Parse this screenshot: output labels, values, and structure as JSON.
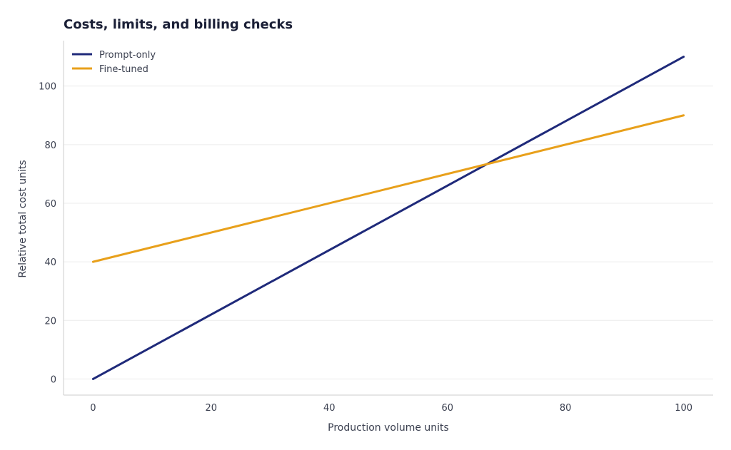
{
  "chart_data": {
    "type": "line",
    "title": "Costs, limits, and billing checks",
    "xlabel": "Production volume units",
    "ylabel": "Relative total cost units",
    "xlim": [
      -5,
      105
    ],
    "ylim": [
      -5.5,
      115.5
    ],
    "xticks": [
      0,
      20,
      40,
      60,
      80,
      100
    ],
    "yticks": [
      0,
      20,
      40,
      60,
      80,
      100
    ],
    "grid": "horizontal",
    "legend_position": "top-left",
    "series": [
      {
        "name": "Prompt-only",
        "color": "#1f2a7a",
        "x": [
          0,
          100
        ],
        "y": [
          0,
          110
        ]
      },
      {
        "name": "Fine-tuned",
        "color": "#e8a01b",
        "x": [
          0,
          100
        ],
        "y": [
          40,
          90
        ]
      }
    ]
  }
}
